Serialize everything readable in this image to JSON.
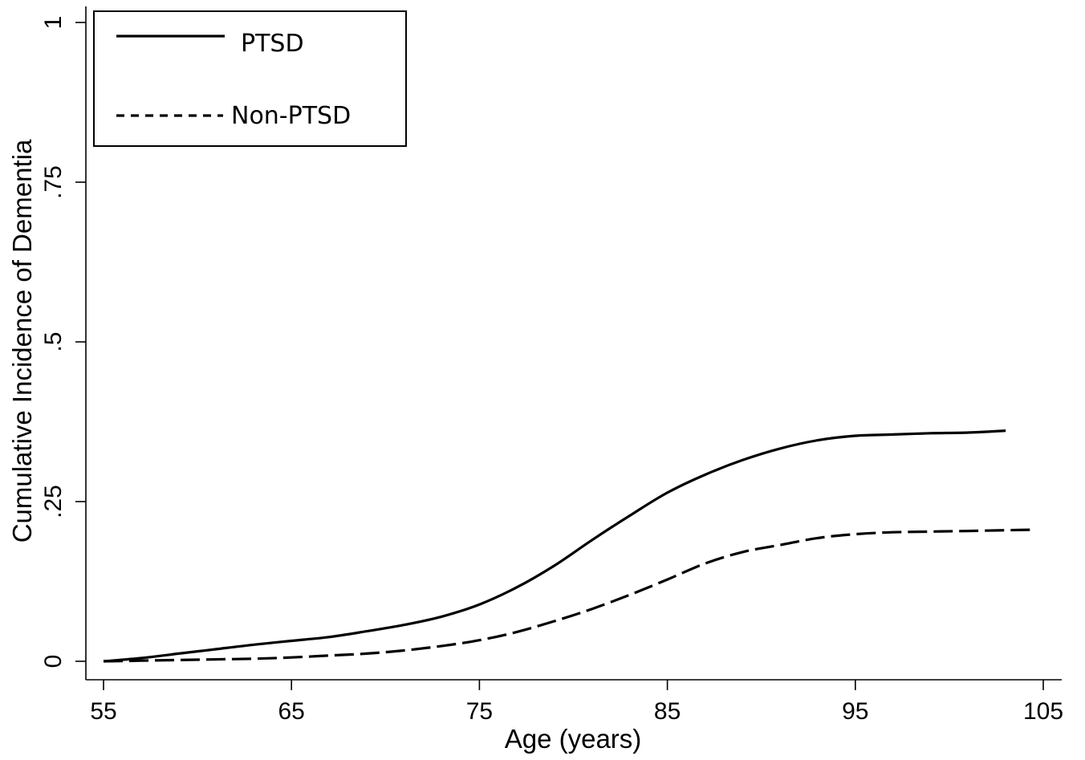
{
  "chart_data": {
    "type": "line",
    "title": "",
    "xlabel": "Age (years)",
    "ylabel": "Cumulative Incidence of Dementia",
    "xlim": [
      55,
      105
    ],
    "ylim": [
      0,
      1
    ],
    "x_ticks": [
      55,
      65,
      75,
      85,
      95,
      105
    ],
    "x_tick_labels": [
      "55",
      "65",
      "75",
      "85",
      "95",
      "105"
    ],
    "y_ticks": [
      0,
      0.25,
      0.5,
      0.75,
      1
    ],
    "y_tick_labels": [
      "0",
      ".25",
      ".5",
      ".75",
      "1"
    ],
    "grid": false,
    "legend_position": "top-left",
    "series": [
      {
        "name": "PTSD",
        "line_style": "solid",
        "x": [
          55,
          57,
          59,
          61,
          63,
          65,
          67,
          69,
          71,
          73,
          75,
          77,
          79,
          81,
          83,
          85,
          87,
          89,
          91,
          93,
          95,
          97,
          99,
          101,
          103
        ],
        "y": [
          0,
          0.005,
          0.012,
          0.019,
          0.026,
          0.032,
          0.038,
          0.047,
          0.057,
          0.07,
          0.089,
          0.116,
          0.15,
          0.19,
          0.228,
          0.264,
          0.292,
          0.315,
          0.333,
          0.346,
          0.353,
          0.355,
          0.357,
          0.358,
          0.361
        ]
      },
      {
        "name": "Non-PTSD",
        "line_style": "dashed",
        "x": [
          55,
          57,
          59,
          61,
          63,
          65,
          67,
          69,
          71,
          73,
          75,
          77,
          79,
          81,
          83,
          85,
          87,
          89,
          91,
          93,
          95,
          97,
          99,
          101,
          104.5
        ],
        "y": [
          0,
          0.001,
          0.002,
          0.003,
          0.004,
          0.006,
          0.009,
          0.012,
          0.017,
          0.024,
          0.033,
          0.046,
          0.063,
          0.082,
          0.104,
          0.128,
          0.153,
          0.171,
          0.182,
          0.193,
          0.199,
          0.202,
          0.203,
          0.204,
          0.206
        ]
      }
    ]
  }
}
